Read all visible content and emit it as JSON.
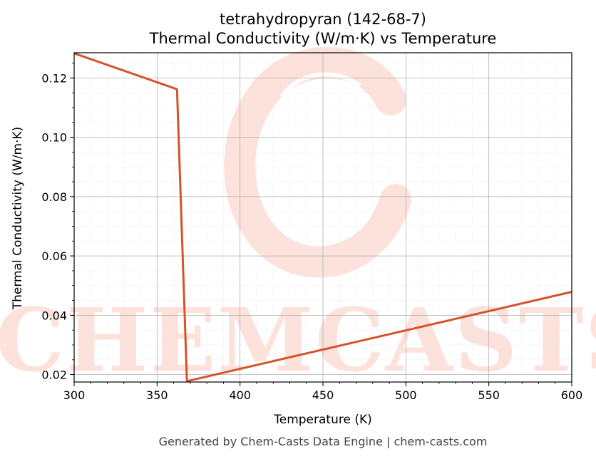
{
  "chart_data": {
    "type": "line",
    "title_line1": "tetrahydropyran (142-68-7)",
    "title_line2": "Thermal Conductivity (W/m·K) vs Temperature",
    "xlabel": "Temperature (K)",
    "ylabel": "Thermal Conductivity (W/m·K)",
    "xlim": [
      300,
      600
    ],
    "ylim": [
      0.0175,
      0.1285
    ],
    "xticks": [
      300,
      350,
      400,
      450,
      500,
      550,
      600
    ],
    "xtick_labels": [
      "300",
      "350",
      "400",
      "450",
      "500",
      "550",
      "600"
    ],
    "yticks": [
      0.02,
      0.04,
      0.06,
      0.08,
      0.1,
      0.12
    ],
    "ytick_labels": [
      "0.02",
      "0.04",
      "0.06",
      "0.08",
      "0.10",
      "0.12"
    ],
    "grid": true,
    "series": [
      {
        "color": "#d4532a",
        "x": [
          300,
          362,
          368,
          600
        ],
        "y": [
          0.1283,
          0.1162,
          0.0178,
          0.0479
        ]
      }
    ]
  },
  "watermark": {
    "text": "CHEMCASTS",
    "color": "#fde0da"
  },
  "footer": "Generated by Chem-Casts Data Engine | chem-casts.com"
}
